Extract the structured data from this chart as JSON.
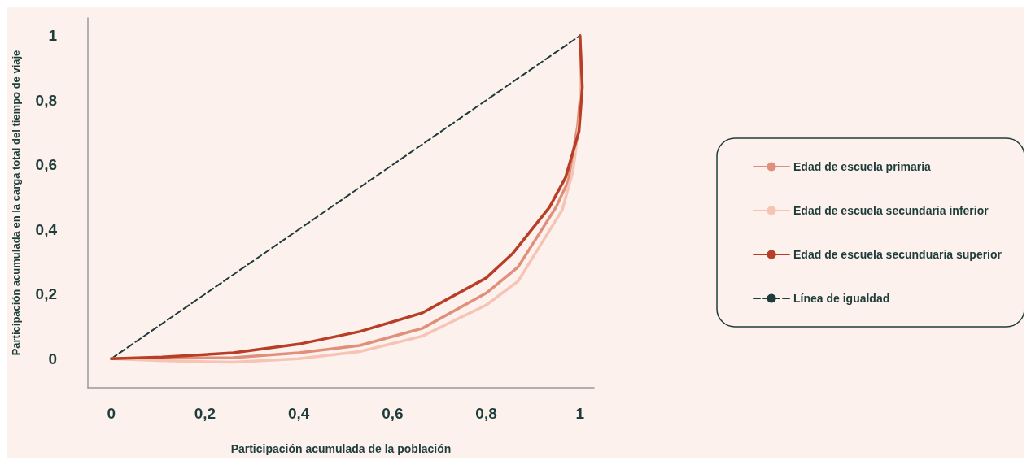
{
  "chart_data": {
    "type": "line",
    "xlabel": "Participación acumulada de la población",
    "ylabel": "Participación acumulada en la carga total del tiempo de viaje",
    "xlim": [
      -0.05,
      1.03
    ],
    "ylim": [
      -0.09,
      1.055
    ],
    "xticks": [
      {
        "value": 0,
        "label": "0"
      },
      {
        "value": 0.2,
        "label": "0,2"
      },
      {
        "value": 0.4,
        "label": "0,4"
      },
      {
        "value": 0.6,
        "label": "0,6"
      },
      {
        "value": 0.8,
        "label": "0,8"
      },
      {
        "value": 1,
        "label": "1"
      }
    ],
    "yticks": [
      {
        "value": 0,
        "label": "0"
      },
      {
        "value": 0.2,
        "label": "0,2"
      },
      {
        "value": 0.4,
        "label": "0,4"
      },
      {
        "value": 0.6,
        "label": "0,6"
      },
      {
        "value": 0.8,
        "label": "0,8"
      },
      {
        "value": 1,
        "label": "1"
      }
    ],
    "grid": false,
    "legend": "right",
    "marker": "none",
    "series": [
      {
        "name": "Edad de escuela primaria",
        "color": "#e0907a",
        "line_style": "solid",
        "x": [
          0,
          0.1,
          0.26,
          0.4,
          0.53,
          0.664,
          0.8,
          0.868,
          0.949,
          0.975,
          0.995,
          1.003,
          1.0
        ],
        "values": [
          0,
          0.002,
          0.003,
          0.018,
          0.041,
          0.094,
          0.203,
          0.284,
          0.469,
          0.55,
          0.72,
          0.85,
          1.0
        ]
      },
      {
        "name": "Edad de escuela secundaria inferior",
        "color": "#f5c4b4",
        "line_style": "solid",
        "x": [
          0,
          0.1,
          0.26,
          0.4,
          0.53,
          0.664,
          0.8,
          0.868,
          0.962,
          0.985,
          1.0,
          1.003,
          1.0
        ],
        "values": [
          0,
          -0.006,
          -0.011,
          0.0,
          0.022,
          0.07,
          0.166,
          0.24,
          0.46,
          0.58,
          0.75,
          0.88,
          1.0
        ]
      },
      {
        "name": "Edad de escuela secunduaria superior",
        "color": "#b83f27",
        "line_style": "solid",
        "x": [
          0,
          0.108,
          0.26,
          0.4,
          0.53,
          0.664,
          0.8,
          0.856,
          0.935,
          0.969,
          0.998,
          1.005,
          1.0
        ],
        "values": [
          0,
          0.005,
          0.018,
          0.045,
          0.084,
          0.142,
          0.25,
          0.325,
          0.469,
          0.56,
          0.704,
          0.84,
          1.0
        ]
      },
      {
        "name": "Línea de igualdad",
        "color": "#1e3d3a",
        "line_style": "dashed",
        "x": [
          0,
          1
        ],
        "values": [
          0,
          1
        ]
      }
    ]
  }
}
